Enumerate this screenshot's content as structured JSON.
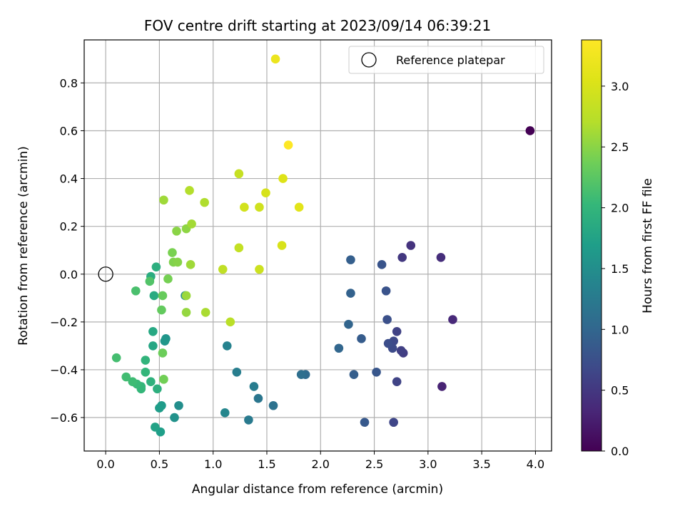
{
  "chart_data": {
    "type": "scatter",
    "title": "FOV centre drift starting at 2023/09/14 06:39:21",
    "xlabel": "Angular distance from reference (arcmin)",
    "ylabel": "Rotation from reference (arcmin)",
    "xlim": [
      -0.2,
      4.15
    ],
    "ylim": [
      -0.74,
      0.98
    ],
    "xticks": [
      "0.0",
      "0.5",
      "1.0",
      "1.5",
      "2.0",
      "2.5",
      "3.0",
      "3.5",
      "4.0"
    ],
    "xtick_values": [
      0,
      0.5,
      1,
      1.5,
      2,
      2.5,
      3,
      3.5,
      4
    ],
    "yticks": [
      "−0.6",
      "−0.4",
      "−0.2",
      "0.0",
      "0.2",
      "0.4",
      "0.6",
      "0.8"
    ],
    "ytick_values": [
      -0.6,
      -0.4,
      -0.2,
      0,
      0.2,
      0.4,
      0.6,
      0.8
    ],
    "grid": true,
    "legend": {
      "position": "top-right",
      "entries": [
        "Reference platepar"
      ]
    },
    "reference_point": {
      "x": 0.0,
      "y": 0.0
    },
    "colorbar": {
      "label": "Hours from first FF file",
      "colormap": "viridis",
      "range": [
        0.0,
        3.38
      ],
      "ticks": [
        "0.0",
        "0.5",
        "1.0",
        "1.5",
        "2.0",
        "2.5",
        "3.0"
      ],
      "tick_values": [
        0,
        0.5,
        1,
        1.5,
        2,
        2.5,
        3
      ]
    },
    "series": [
      {
        "points": [
          {
            "x": 3.95,
            "y": 0.6,
            "t": 0.0
          },
          {
            "x": 3.13,
            "y": -0.47,
            "t": 0.3
          },
          {
            "x": 3.23,
            "y": -0.19,
            "t": 0.35
          },
          {
            "x": 3.12,
            "y": 0.07,
            "t": 0.4
          },
          {
            "x": 2.84,
            "y": 0.12,
            "t": 0.45
          },
          {
            "x": 2.76,
            "y": 0.07,
            "t": 0.5
          },
          {
            "x": 2.77,
            "y": -0.33,
            "t": 0.55
          },
          {
            "x": 2.75,
            "y": -0.32,
            "t": 0.58
          },
          {
            "x": 2.71,
            "y": -0.24,
            "t": 0.6
          },
          {
            "x": 2.71,
            "y": -0.45,
            "t": 0.62
          },
          {
            "x": 2.68,
            "y": -0.62,
            "t": 0.65
          },
          {
            "x": 2.68,
            "y": -0.28,
            "t": 0.68
          },
          {
            "x": 2.67,
            "y": -0.31,
            "t": 0.7
          },
          {
            "x": 2.63,
            "y": -0.29,
            "t": 0.72
          },
          {
            "x": 2.62,
            "y": -0.19,
            "t": 0.75
          },
          {
            "x": 2.61,
            "y": -0.07,
            "t": 0.78
          },
          {
            "x": 2.57,
            "y": 0.04,
            "t": 0.8
          },
          {
            "x": 2.52,
            "y": -0.41,
            "t": 0.82
          },
          {
            "x": 2.41,
            "y": -0.62,
            "t": 0.85
          },
          {
            "x": 2.38,
            "y": -0.27,
            "t": 0.88
          },
          {
            "x": 2.31,
            "y": -0.42,
            "t": 0.9
          },
          {
            "x": 2.28,
            "y": 0.06,
            "t": 0.92
          },
          {
            "x": 2.28,
            "y": -0.08,
            "t": 0.95
          },
          {
            "x": 2.26,
            "y": -0.21,
            "t": 0.98
          },
          {
            "x": 2.17,
            "y": -0.31,
            "t": 1.0
          },
          {
            "x": 1.86,
            "y": -0.42,
            "t": 1.05
          },
          {
            "x": 1.82,
            "y": -0.42,
            "t": 1.1
          },
          {
            "x": 1.56,
            "y": -0.55,
            "t": 1.15
          },
          {
            "x": 1.42,
            "y": -0.52,
            "t": 1.2
          },
          {
            "x": 1.33,
            "y": -0.61,
            "t": 1.25
          },
          {
            "x": 1.38,
            "y": -0.47,
            "t": 1.28
          },
          {
            "x": 1.22,
            "y": -0.41,
            "t": 1.3
          },
          {
            "x": 1.13,
            "y": -0.3,
            "t": 1.35
          },
          {
            "x": 1.11,
            "y": -0.58,
            "t": 1.4
          },
          {
            "x": 0.74,
            "y": -0.09,
            "t": 1.45
          },
          {
            "x": 0.68,
            "y": -0.55,
            "t": 1.5
          },
          {
            "x": 0.64,
            "y": -0.6,
            "t": 1.55
          },
          {
            "x": 0.56,
            "y": -0.27,
            "t": 1.58
          },
          {
            "x": 0.55,
            "y": -0.28,
            "t": 1.6
          },
          {
            "x": 0.52,
            "y": -0.55,
            "t": 1.65
          },
          {
            "x": 0.5,
            "y": -0.56,
            "t": 1.68
          },
          {
            "x": 0.51,
            "y": -0.66,
            "t": 1.7
          },
          {
            "x": 0.46,
            "y": -0.64,
            "t": 1.75
          },
          {
            "x": 0.44,
            "y": -0.3,
            "t": 1.8
          },
          {
            "x": 0.44,
            "y": -0.24,
            "t": 1.82
          },
          {
            "x": 0.45,
            "y": -0.09,
            "t": 1.85
          },
          {
            "x": 0.42,
            "y": -0.01,
            "t": 1.88
          },
          {
            "x": 0.47,
            "y": 0.03,
            "t": 1.9
          },
          {
            "x": 0.48,
            "y": -0.48,
            "t": 1.92
          },
          {
            "x": 0.42,
            "y": -0.45,
            "t": 1.95
          },
          {
            "x": 0.37,
            "y": -0.36,
            "t": 1.98
          },
          {
            "x": 0.37,
            "y": -0.41,
            "t": 2.0
          },
          {
            "x": 0.33,
            "y": -0.47,
            "t": 2.0
          },
          {
            "x": 0.33,
            "y": -0.48,
            "t": 2.02
          },
          {
            "x": 0.29,
            "y": -0.46,
            "t": 2.05
          },
          {
            "x": 0.25,
            "y": -0.45,
            "t": 2.08
          },
          {
            "x": 0.19,
            "y": -0.43,
            "t": 2.1
          },
          {
            "x": 0.1,
            "y": -0.35,
            "t": 2.12
          },
          {
            "x": 0.28,
            "y": -0.07,
            "t": 2.15
          },
          {
            "x": 0.41,
            "y": -0.03,
            "t": 2.2
          },
          {
            "x": 0.52,
            "y": -0.15,
            "t": 2.3
          },
          {
            "x": 0.53,
            "y": -0.09,
            "t": 2.32
          },
          {
            "x": 0.53,
            "y": -0.33,
            "t": 2.35
          },
          {
            "x": 0.54,
            "y": -0.44,
            "t": 2.38
          },
          {
            "x": 0.58,
            "y": -0.02,
            "t": 2.4
          },
          {
            "x": 0.62,
            "y": 0.09,
            "t": 2.42
          },
          {
            "x": 0.63,
            "y": 0.05,
            "t": 2.45
          },
          {
            "x": 0.67,
            "y": 0.05,
            "t": 2.48
          },
          {
            "x": 0.66,
            "y": 0.18,
            "t": 2.5
          },
          {
            "x": 0.75,
            "y": 0.19,
            "t": 2.52
          },
          {
            "x": 0.75,
            "y": -0.16,
            "t": 2.55
          },
          {
            "x": 0.75,
            "y": -0.09,
            "t": 2.58
          },
          {
            "x": 0.79,
            "y": 0.04,
            "t": 2.6
          },
          {
            "x": 0.8,
            "y": 0.21,
            "t": 2.62
          },
          {
            "x": 0.93,
            "y": -0.16,
            "t": 2.65
          },
          {
            "x": 0.92,
            "y": 0.3,
            "t": 2.68
          },
          {
            "x": 0.78,
            "y": 0.35,
            "t": 2.7
          },
          {
            "x": 0.54,
            "y": 0.31,
            "t": 2.6
          },
          {
            "x": 1.16,
            "y": -0.2,
            "t": 2.75
          },
          {
            "x": 1.09,
            "y": 0.02,
            "t": 2.8
          },
          {
            "x": 1.24,
            "y": 0.11,
            "t": 2.82
          },
          {
            "x": 1.24,
            "y": 0.42,
            "t": 2.85
          },
          {
            "x": 1.43,
            "y": 0.02,
            "t": 2.9
          },
          {
            "x": 1.43,
            "y": 0.28,
            "t": 2.92
          },
          {
            "x": 1.29,
            "y": 0.28,
            "t": 2.95
          },
          {
            "x": 1.49,
            "y": 0.34,
            "t": 2.98
          },
          {
            "x": 1.64,
            "y": 0.12,
            "t": 3.0
          },
          {
            "x": 1.65,
            "y": 0.4,
            "t": 3.05
          },
          {
            "x": 1.8,
            "y": 0.28,
            "t": 3.1
          },
          {
            "x": 1.58,
            "y": 0.9,
            "t": 3.2
          },
          {
            "x": 1.7,
            "y": 0.54,
            "t": 3.38
          }
        ]
      }
    ]
  }
}
